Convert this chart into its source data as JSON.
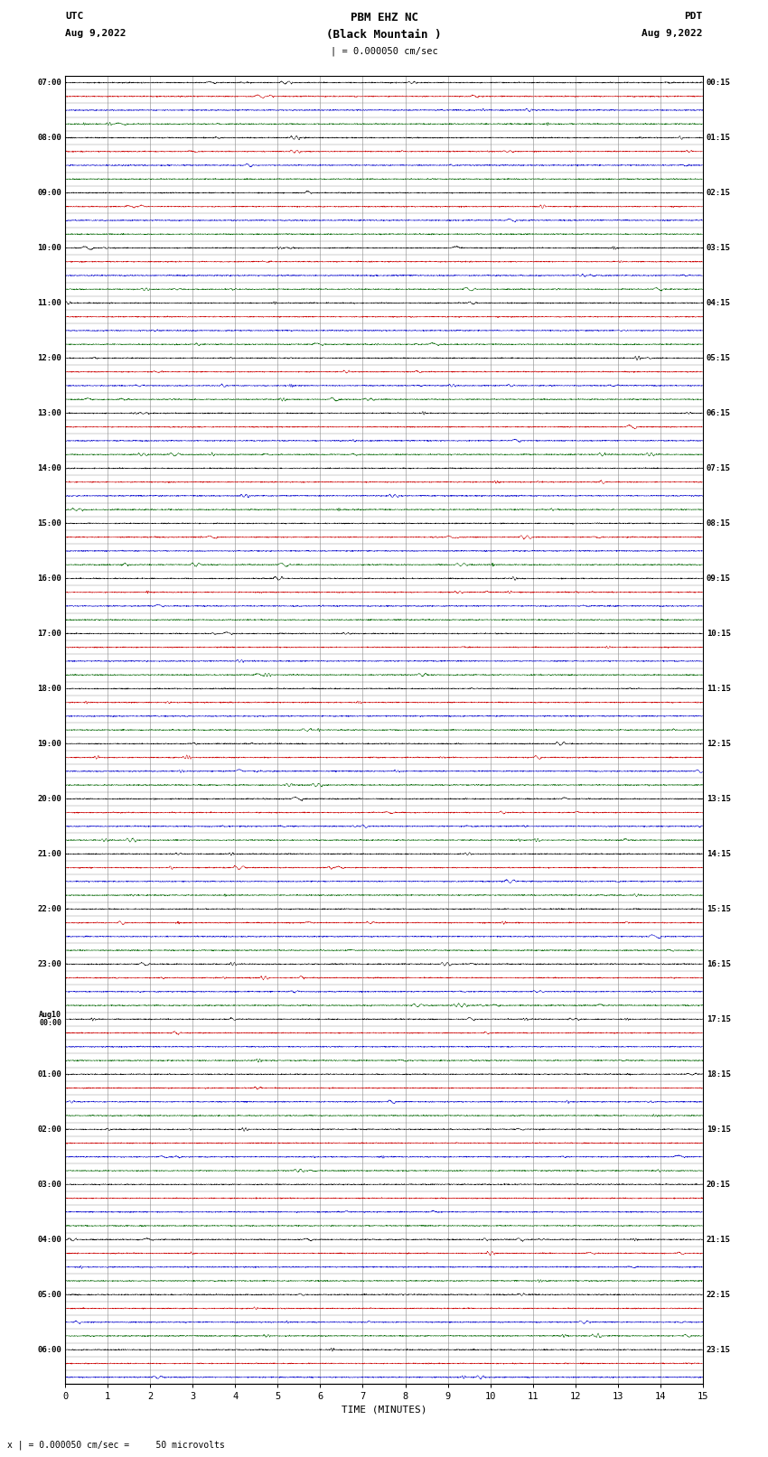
{
  "title_line1": "PBM EHZ NC",
  "title_line2": "(Black Mountain )",
  "title_line3": "| = 0.000050 cm/sec",
  "left_label_line1": "UTC",
  "left_label_line2": "Aug 9,2022",
  "right_label_line1": "PDT",
  "right_label_line2": "Aug 9,2022",
  "xlabel": "TIME (MINUTES)",
  "bottom_label": "x | = 0.000050 cm/sec =     50 microvolts",
  "left_times": [
    "07:00",
    "",
    "",
    "",
    "08:00",
    "",
    "",
    "",
    "09:00",
    "",
    "",
    "",
    "10:00",
    "",
    "",
    "",
    "11:00",
    "",
    "",
    "",
    "12:00",
    "",
    "",
    "",
    "13:00",
    "",
    "",
    "",
    "14:00",
    "",
    "",
    "",
    "15:00",
    "",
    "",
    "",
    "16:00",
    "",
    "",
    "",
    "17:00",
    "",
    "",
    "",
    "18:00",
    "",
    "",
    "",
    "19:00",
    "",
    "",
    "",
    "20:00",
    "",
    "",
    "",
    "21:00",
    "",
    "",
    "",
    "22:00",
    "",
    "",
    "",
    "23:00",
    "",
    "",
    "",
    "Aug10\n00:00",
    "",
    "",
    "",
    "01:00",
    "",
    "",
    "",
    "02:00",
    "",
    "",
    "",
    "03:00",
    "",
    "",
    "",
    "04:00",
    "",
    "",
    "",
    "05:00",
    "",
    "",
    "",
    "06:00",
    "",
    ""
  ],
  "right_times": [
    "00:15",
    "",
    "",
    "",
    "01:15",
    "",
    "",
    "",
    "02:15",
    "",
    "",
    "",
    "03:15",
    "",
    "",
    "",
    "04:15",
    "",
    "",
    "",
    "05:15",
    "",
    "",
    "",
    "06:15",
    "",
    "",
    "",
    "07:15",
    "",
    "",
    "",
    "08:15",
    "",
    "",
    "",
    "09:15",
    "",
    "",
    "",
    "10:15",
    "",
    "",
    "",
    "11:15",
    "",
    "",
    "",
    "12:15",
    "",
    "",
    "",
    "13:15",
    "",
    "",
    "",
    "14:15",
    "",
    "",
    "",
    "15:15",
    "",
    "",
    "",
    "16:15",
    "",
    "",
    "",
    "17:15",
    "",
    "",
    "",
    "18:15",
    "",
    "",
    "",
    "19:15",
    "",
    "",
    "",
    "20:15",
    "",
    "",
    "",
    "21:15",
    "",
    "",
    "",
    "22:15",
    "",
    "",
    "",
    "23:15",
    "",
    ""
  ],
  "n_rows": 95,
  "minutes": 15,
  "background_color": "#ffffff",
  "row_colors": [
    "#000000",
    "#cc0000",
    "#0000cc",
    "#006600"
  ],
  "grid_color": "#888888",
  "seed": 42
}
